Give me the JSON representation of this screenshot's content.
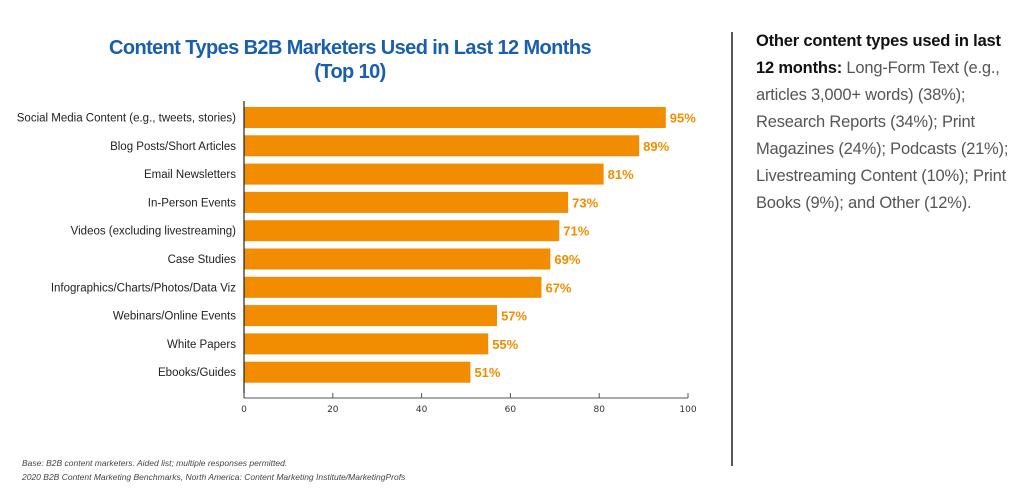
{
  "chart_data": {
    "type": "bar",
    "orientation": "horizontal",
    "title": "Content Types B2B Marketers Used in Last 12 Months",
    "subtitle": "(Top 10)",
    "categories": [
      "Social Media Content (e.g., tweets, stories)",
      "Blog Posts/Short Articles",
      "Email Newsletters",
      "In-Person Events",
      "Videos (excluding livestreaming)",
      "Case Studies",
      "Infographics/Charts/Photos/Data Viz",
      "Webinars/Online Events",
      "White Papers",
      "Ebooks/Guides"
    ],
    "values": [
      95,
      89,
      81,
      73,
      71,
      69,
      67,
      57,
      55,
      51
    ],
    "value_labels": [
      "95%",
      "89%",
      "81%",
      "73%",
      "71%",
      "69%",
      "67%",
      "57%",
      "55%",
      "51%"
    ],
    "xlabel": "",
    "ylabel": "",
    "xlim": [
      0,
      100
    ],
    "x_ticks": [
      0,
      20,
      40,
      60,
      80,
      100
    ],
    "x_tick_labels": [
      "0",
      "20",
      "40",
      "60",
      "80",
      "100"
    ],
    "grid": false,
    "legend": "none",
    "bar_color": "#f28c00",
    "title_color": "#1a5fae"
  },
  "title": {
    "line1": "Content Types B2B Marketers Used in Last 12 Months",
    "line2": "(Top 10)"
  },
  "side_note": {
    "lead": "Other content types used in last 12 months:",
    "body": " Long-Form Text (e.g., articles 3,000+ words) (38%); Research Reports (34%); Print Magazines (24%); Podcasts (21%); Livestreaming Content (10%); Print Books (9%); and Other (12%)."
  },
  "footnotes": {
    "base": "Base: B2B content marketers. Aided list; multiple responses permitted.",
    "source": "2020 B2B Content Marketing Benchmarks, North America: Content Marketing Institute/MarketingProfs"
  }
}
